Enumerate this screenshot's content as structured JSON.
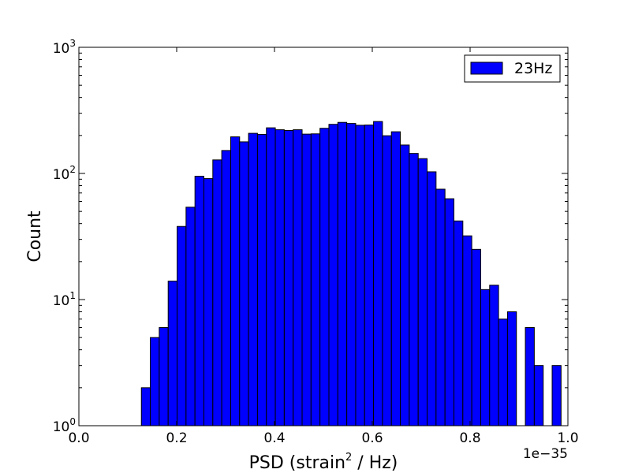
{
  "chart_data": {
    "type": "bar",
    "title": "",
    "xlabel": "PSD (strain",
    "xlabel_sup": "2",
    "xlabel_suffix": " / Hz)",
    "ylabel": "Count",
    "xlim": [
      0.0,
      1.0
    ],
    "ylim": [
      1,
      1000
    ],
    "yscale": "log",
    "x_offset_label": "1e−35",
    "x_ticks": [
      0.0,
      0.2,
      0.4,
      0.6,
      0.8,
      1.0
    ],
    "x_tick_labels": [
      "0.0",
      "0.2",
      "0.4",
      "0.6",
      "0.8",
      "1.0"
    ],
    "y_tick_values": [
      1,
      10,
      100,
      1000
    ],
    "y_tick_base": "10",
    "y_tick_exponents": [
      "0",
      "1",
      "2",
      "3"
    ],
    "grid": false,
    "legend_position": "top-right",
    "bar_color": "#0000ff",
    "edge_color": "#000000",
    "series": [
      {
        "name": "23Hz",
        "bin_width": 0.01826,
        "bin_starts": [
          0.0,
          0.01826,
          0.03652,
          0.05478,
          0.07304,
          0.0913,
          0.10956,
          0.12782,
          0.14608,
          0.16434,
          0.1826,
          0.20086,
          0.21912,
          0.23738,
          0.25564,
          0.2739,
          0.29216,
          0.31042,
          0.32868,
          0.34694,
          0.3652,
          0.38346,
          0.40172,
          0.41998,
          0.43824,
          0.4565,
          0.47476,
          0.49302,
          0.51128,
          0.52954,
          0.5478,
          0.56606,
          0.58432,
          0.60258,
          0.62084,
          0.6391,
          0.65736,
          0.67562,
          0.69388,
          0.71214,
          0.7304,
          0.74866,
          0.76692,
          0.78518,
          0.80344,
          0.8217,
          0.83996,
          0.85822,
          0.87648,
          0.89474,
          0.913,
          0.93126,
          0.94952,
          0.96778
        ],
        "counts": [
          0,
          0,
          0,
          0,
          0,
          0,
          0,
          2,
          5,
          6,
          14,
          38,
          54,
          95,
          91,
          128,
          152,
          195,
          178,
          208,
          204,
          230,
          222,
          219,
          222,
          205,
          206,
          228,
          245,
          254,
          249,
          241,
          242,
          258,
          199,
          214,
          168,
          144,
          131,
          103,
          75,
          63,
          42,
          32,
          25,
          12,
          13,
          7,
          8,
          0,
          6,
          3,
          0,
          3
        ]
      }
    ]
  }
}
